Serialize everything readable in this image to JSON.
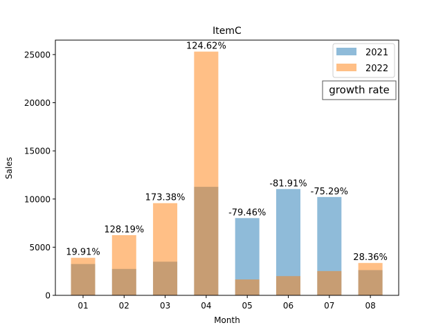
{
  "chart_data": {
    "type": "bar",
    "title": "ItemC",
    "xlabel": "Month",
    "ylabel": "Sales",
    "categories": [
      "01",
      "02",
      "03",
      "04",
      "05",
      "06",
      "07",
      "08"
    ],
    "series": [
      {
        "name": "2021",
        "color": "#1f77b4",
        "alpha": 0.5,
        "values": [
          3250,
          2740,
          3500,
          11270,
          8020,
          11040,
          10210,
          2620
        ]
      },
      {
        "name": "2022",
        "color": "#ff7f0e",
        "alpha": 0.5,
        "values": [
          3900,
          6250,
          9570,
          25310,
          1650,
          2000,
          2520,
          3360
        ]
      }
    ],
    "data_labels": [
      "19.91%",
      "128.19%",
      "173.38%",
      "124.62%",
      "-79.46%",
      "-81.91%",
      "-75.29%",
      "28.36%"
    ],
    "yticks": [
      0,
      5000,
      10000,
      15000,
      20000,
      25000
    ],
    "ylim": [
      0,
      26500
    ],
    "grid": false,
    "legend_position": "top-right",
    "annotation": "growth rate"
  }
}
